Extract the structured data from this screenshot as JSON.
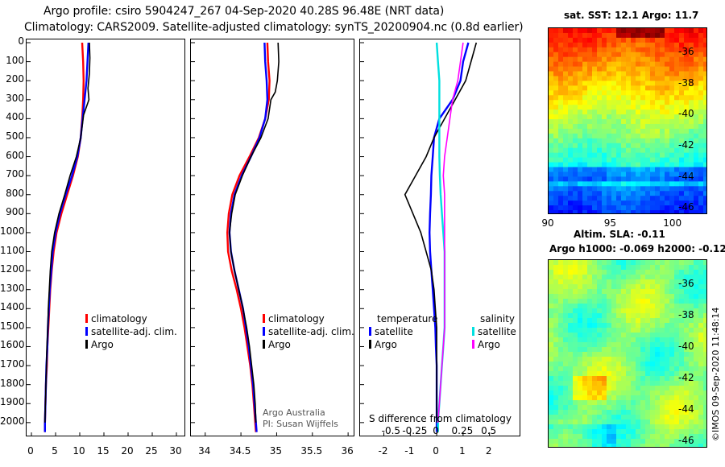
{
  "title_line1": "Argo profile: csiro 5904247_267 04-Sep-2020 40.28S 96.48E (NRT data)",
  "title_line2": "Climatology: CARS2009. Satellite-adjusted climatology: synTS_20200904.nc (0.8d earlier)",
  "colors": {
    "climatology": "#ff0000",
    "satellite_adj": "#0000ff",
    "argo": "#000000",
    "sat_salinity": "#00e0e0",
    "argo_salinity": "#ff00ff"
  },
  "depth_ticks": [
    "0",
    "100",
    "200",
    "300",
    "400",
    "500",
    "600",
    "700",
    "800",
    "900",
    "1000",
    "1100",
    "1200",
    "1300",
    "1400",
    "1500",
    "1600",
    "1700",
    "1800",
    "1900",
    "2000"
  ],
  "chart_data": [
    {
      "type": "line",
      "panel": "temperature",
      "xlim": [
        -1,
        32
      ],
      "ylim": [
        2060,
        0
      ],
      "xticks": [
        "0",
        "5",
        "10",
        "15",
        "20",
        "25",
        "30"
      ],
      "series": [
        {
          "name": "climatology",
          "color": "#ff0000",
          "points": [
            [
              10.5,
              0
            ],
            [
              10.7,
              100
            ],
            [
              10.8,
              200
            ],
            [
              10.7,
              300
            ],
            [
              10.5,
              400
            ],
            [
              10.2,
              500
            ],
            [
              9.6,
              600
            ],
            [
              8.6,
              700
            ],
            [
              7.4,
              800
            ],
            [
              6.2,
              900
            ],
            [
              5.2,
              1000
            ],
            [
              4.6,
              1100
            ],
            [
              4.2,
              1200
            ],
            [
              3.9,
              1300
            ],
            [
              3.7,
              1400
            ],
            [
              3.5,
              1500
            ],
            [
              3.3,
              1600
            ],
            [
              3.2,
              1700
            ],
            [
              3.0,
              1800
            ],
            [
              2.9,
              1900
            ],
            [
              2.8,
              2000
            ],
            [
              2.8,
              2050
            ]
          ]
        },
        {
          "name": "satellite-adj. clim.",
          "color": "#0000ff",
          "points": [
            [
              11.8,
              0
            ],
            [
              11.6,
              100
            ],
            [
              11.4,
              200
            ],
            [
              11.0,
              300
            ],
            [
              10.6,
              400
            ],
            [
              10.2,
              500
            ],
            [
              9.5,
              600
            ],
            [
              8.4,
              700
            ],
            [
              7.1,
              800
            ],
            [
              5.9,
              900
            ],
            [
              5.0,
              1000
            ],
            [
              4.4,
              1100
            ],
            [
              4.1,
              1200
            ],
            [
              3.8,
              1300
            ],
            [
              3.6,
              1400
            ],
            [
              3.4,
              1500
            ],
            [
              3.3,
              1600
            ],
            [
              3.1,
              1700
            ],
            [
              3.0,
              1800
            ],
            [
              2.9,
              1900
            ],
            [
              2.8,
              2000
            ],
            [
              2.8,
              2050
            ]
          ]
        },
        {
          "name": "Argo",
          "color": "#000000",
          "points": [
            [
              12.0,
              0
            ],
            [
              12.1,
              80
            ],
            [
              12.0,
              160
            ],
            [
              11.7,
              240
            ],
            [
              11.9,
              300
            ],
            [
              10.8,
              380
            ],
            [
              10.2,
              500
            ],
            [
              9.3,
              600
            ],
            [
              8.0,
              700
            ],
            [
              6.9,
              800
            ],
            [
              5.7,
              900
            ],
            [
              4.8,
              1000
            ],
            [
              4.2,
              1100
            ],
            [
              3.9,
              1200
            ],
            [
              3.7,
              1300
            ],
            [
              3.5,
              1400
            ],
            [
              3.4,
              1500
            ],
            [
              3.2,
              1600
            ],
            [
              3.1,
              1700
            ],
            [
              3.0,
              1800
            ],
            [
              2.9,
              1900
            ],
            [
              2.8,
              2000
            ]
          ]
        }
      ],
      "legend": [
        "climatology",
        "satellite-adj. clim.",
        "Argo"
      ]
    },
    {
      "type": "line",
      "panel": "salinity",
      "xlim": [
        33.8,
        36.1
      ],
      "ylim": [
        2060,
        0
      ],
      "xticks": [
        "34",
        "34.5",
        "35",
        "35.5",
        "36"
      ],
      "series": [
        {
          "name": "climatology",
          "color": "#ff0000",
          "points": [
            [
              34.87,
              0
            ],
            [
              34.88,
              100
            ],
            [
              34.9,
              200
            ],
            [
              34.89,
              300
            ],
            [
              34.84,
              400
            ],
            [
              34.75,
              500
            ],
            [
              34.62,
              600
            ],
            [
              34.48,
              700
            ],
            [
              34.38,
              800
            ],
            [
              34.33,
              900
            ],
            [
              34.31,
              1000
            ],
            [
              34.32,
              1100
            ],
            [
              34.37,
              1200
            ],
            [
              34.44,
              1300
            ],
            [
              34.5,
              1400
            ],
            [
              34.55,
              1500
            ],
            [
              34.59,
              1600
            ],
            [
              34.63,
              1700
            ],
            [
              34.66,
              1800
            ],
            [
              34.68,
              1900
            ],
            [
              34.7,
              2000
            ],
            [
              34.71,
              2050
            ]
          ]
        },
        {
          "name": "satellite-adj. clim.",
          "color": "#0000ff",
          "points": [
            [
              34.83,
              0
            ],
            [
              34.84,
              100
            ],
            [
              34.86,
              200
            ],
            [
              34.87,
              300
            ],
            [
              34.84,
              400
            ],
            [
              34.76,
              500
            ],
            [
              34.64,
              600
            ],
            [
              34.51,
              700
            ],
            [
              34.41,
              800
            ],
            [
              34.36,
              900
            ],
            [
              34.34,
              1000
            ],
            [
              34.36,
              1100
            ],
            [
              34.41,
              1200
            ],
            [
              34.47,
              1300
            ],
            [
              34.53,
              1400
            ],
            [
              34.57,
              1500
            ],
            [
              34.61,
              1600
            ],
            [
              34.64,
              1700
            ],
            [
              34.67,
              1800
            ],
            [
              34.69,
              1900
            ],
            [
              34.71,
              2000
            ],
            [
              34.72,
              2050
            ]
          ]
        },
        {
          "name": "Argo",
          "color": "#000000",
          "points": [
            [
              35.02,
              0
            ],
            [
              35.03,
              100
            ],
            [
              35.01,
              200
            ],
            [
              34.98,
              260
            ],
            [
              34.92,
              300
            ],
            [
              34.88,
              400
            ],
            [
              34.78,
              500
            ],
            [
              34.64,
              600
            ],
            [
              34.52,
              700
            ],
            [
              34.42,
              800
            ],
            [
              34.37,
              900
            ],
            [
              34.34,
              1000
            ],
            [
              34.36,
              1100
            ],
            [
              34.41,
              1200
            ],
            [
              34.47,
              1300
            ],
            [
              34.53,
              1400
            ],
            [
              34.58,
              1500
            ],
            [
              34.62,
              1600
            ],
            [
              34.65,
              1700
            ],
            [
              34.68,
              1800
            ],
            [
              34.7,
              1900
            ],
            [
              34.71,
              2000
            ]
          ]
        }
      ],
      "legend": [
        "climatology",
        "satellite-adj. clim.",
        "Argo"
      ],
      "notes": [
        "Argo Australia",
        "PI: Susan Wijffels"
      ]
    },
    {
      "type": "line",
      "panel": "difference",
      "xlabel": "S difference from climatology",
      "xlim": [
        -2.9,
        3.2
      ],
      "ylim": [
        2060,
        0
      ],
      "xticks": [
        "-2",
        "-1",
        "0",
        "1",
        "2"
      ],
      "xticks_secondary": [
        "-0.5",
        "-0.25",
        "0",
        "0.25",
        "0.5"
      ],
      "series": [
        {
          "name": "temperature satellite",
          "color": "#0000ff",
          "points": [
            [
              1.2,
              0
            ],
            [
              1.0,
              100
            ],
            [
              0.9,
              200
            ],
            [
              0.6,
              300
            ],
            [
              0.1,
              400
            ],
            [
              -0.1,
              500
            ],
            [
              -0.15,
              600
            ],
            [
              -0.2,
              700
            ],
            [
              -0.22,
              800
            ],
            [
              -0.25,
              900
            ],
            [
              -0.27,
              1000
            ],
            [
              -0.25,
              1100
            ],
            [
              -0.2,
              1200
            ],
            [
              -0.15,
              1300
            ],
            [
              -0.1,
              1400
            ],
            [
              -0.05,
              1500
            ],
            [
              -0.03,
              1600
            ],
            [
              0.0,
              1700
            ],
            [
              0.0,
              1800
            ],
            [
              0.0,
              1900
            ],
            [
              0.0,
              2000
            ],
            [
              0.0,
              2050
            ]
          ]
        },
        {
          "name": "temperature Argo",
          "color": "#000000",
          "points": [
            [
              1.5,
              0
            ],
            [
              1.3,
              100
            ],
            [
              1.1,
              200
            ],
            [
              0.7,
              300
            ],
            [
              0.3,
              400
            ],
            [
              -0.1,
              500
            ],
            [
              -0.4,
              600
            ],
            [
              -0.8,
              700
            ],
            [
              -1.2,
              800
            ],
            [
              -0.9,
              900
            ],
            [
              -0.6,
              1000
            ],
            [
              -0.4,
              1100
            ],
            [
              -0.2,
              1200
            ],
            [
              -0.1,
              1300
            ],
            [
              -0.05,
              1400
            ],
            [
              0.0,
              1500
            ],
            [
              0.0,
              1600
            ],
            [
              0.0,
              1700
            ],
            [
              0.0,
              1800
            ],
            [
              0.0,
              1900
            ],
            [
              0.0,
              2000
            ]
          ]
        },
        {
          "name": "salinity satellite",
          "color": "#00e0e0",
          "points": [
            [
              0.0,
              0
            ],
            [
              0.05,
              100
            ],
            [
              0.1,
              200
            ],
            [
              0.1,
              300
            ],
            [
              0.1,
              400
            ],
            [
              0.1,
              500
            ],
            [
              0.1,
              600
            ],
            [
              0.12,
              700
            ],
            [
              0.15,
              800
            ],
            [
              0.2,
              900
            ],
            [
              0.25,
              1000
            ],
            [
              0.3,
              1100
            ],
            [
              0.3,
              1200
            ],
            [
              0.3,
              1300
            ],
            [
              0.3,
              1400
            ],
            [
              0.3,
              1500
            ],
            [
              0.25,
              1600
            ],
            [
              0.2,
              1700
            ],
            [
              0.15,
              1800
            ],
            [
              0.1,
              1900
            ],
            [
              0.05,
              2000
            ],
            [
              0.05,
              2050
            ]
          ]
        },
        {
          "name": "salinity Argo",
          "color": "#ff00ff",
          "points": [
            [
              1.0,
              0
            ],
            [
              0.9,
              100
            ],
            [
              0.8,
              200
            ],
            [
              0.6,
              300
            ],
            [
              0.5,
              400
            ],
            [
              0.4,
              500
            ],
            [
              0.3,
              600
            ],
            [
              0.25,
              700
            ],
            [
              0.3,
              800
            ],
            [
              0.3,
              900
            ],
            [
              0.3,
              1000
            ],
            [
              0.3,
              1100
            ],
            [
              0.3,
              1200
            ],
            [
              0.3,
              1300
            ],
            [
              0.3,
              1400
            ],
            [
              0.3,
              1500
            ],
            [
              0.25,
              1600
            ],
            [
              0.2,
              1700
            ],
            [
              0.15,
              1800
            ],
            [
              0.1,
              1900
            ],
            [
              0.05,
              2000
            ]
          ]
        }
      ],
      "legend_groups": [
        {
          "title": "temperature",
          "items": [
            "satellite",
            "Argo"
          ]
        },
        {
          "title": "salinity",
          "items": [
            "satellite",
            "Argo"
          ]
        }
      ]
    },
    {
      "type": "heatmap",
      "panel": "sst-map",
      "title": "sat. SST: 12.1 Argo: 11.7",
      "xticks": [
        "90",
        "95",
        "100"
      ],
      "yticks": [
        "-36",
        "-38",
        "-40",
        "-42",
        "-44",
        "-46"
      ],
      "xlim": [
        90,
        102.8
      ],
      "ylim": [
        -46.4,
        -34.4
      ]
    },
    {
      "type": "heatmap",
      "panel": "sla-map",
      "title_line1": "Altim. SLA: -0.11",
      "title_line2": "Argo h1000: -0.069 h2000: -0.12",
      "yticks": [
        "-36",
        "-38",
        "-40",
        "-42",
        "-44",
        "-46"
      ],
      "xlim": [
        90,
        102.8
      ],
      "ylim": [
        -46.4,
        -34.4
      ]
    }
  ],
  "legend_labels": {
    "climatology": "climatology",
    "satellite_adj": "satellite-adj. clim.",
    "argo": "Argo",
    "temp_title": "temperature",
    "sal_title": "salinity",
    "satellite": "satellite"
  },
  "notes": {
    "line1": "Argo Australia",
    "line2": "PI: Susan Wijffels"
  },
  "diff_label": "S difference from climatology",
  "copyright": "©IMOS 09-Sep-2020 11:48:14"
}
